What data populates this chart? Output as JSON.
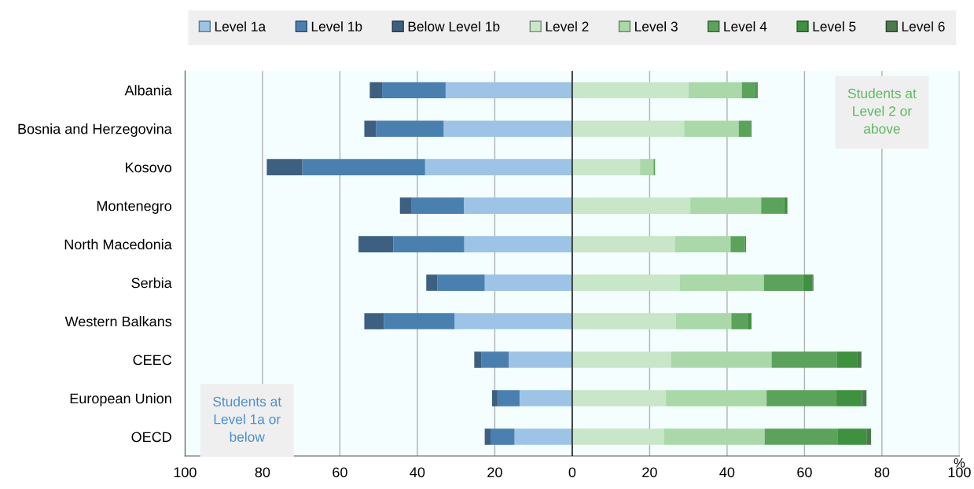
{
  "chart_data": {
    "type": "bar",
    "orientation": "horizontal",
    "stacked": true,
    "categories": [
      "Albania",
      "Bosnia and Herzegovina",
      "Kosovo",
      "Montenegro",
      "North Macedonia",
      "Serbia",
      "Western Balkans",
      "CEEC",
      "European Union",
      "OECD"
    ],
    "series": [
      {
        "name": "Level 1a",
        "color": "#9dc3e6",
        "values": [
          -32.7,
          -33.2,
          -38.0,
          -28.0,
          -27.9,
          -22.6,
          -30.4,
          -16.4,
          -13.6,
          -14.9
        ]
      },
      {
        "name": "Level 1b",
        "color": "#4a80b0",
        "values": [
          -16.4,
          -17.5,
          -31.7,
          -13.6,
          -18.3,
          -12.2,
          -18.2,
          -7.0,
          -5.7,
          -6.2
        ]
      },
      {
        "name": "Below Level 1b",
        "color": "#3d6080",
        "values": [
          -3.2,
          -3.0,
          -9.2,
          -2.9,
          -9.0,
          -2.9,
          -5.1,
          -1.9,
          -1.4,
          -1.5
        ]
      },
      {
        "name": "Level 2",
        "color": "#c8e6c8",
        "values": [
          30.0,
          28.9,
          17.5,
          30.5,
          26.5,
          27.8,
          26.8,
          25.5,
          24.2,
          23.7
        ]
      },
      {
        "name": "Level 3",
        "color": "#aad8a8",
        "values": [
          13.8,
          14.1,
          3.5,
          18.3,
          14.4,
          21.7,
          14.3,
          26.0,
          26.0,
          26.0
        ]
      },
      {
        "name": "Level 4",
        "color": "#5ba35b",
        "values": [
          3.5,
          3.1,
          0.4,
          5.9,
          3.7,
          10.1,
          4.4,
          16.8,
          17.9,
          18.8
        ]
      },
      {
        "name": "Level 5",
        "color": "#3e913e",
        "values": [
          0.4,
          0.2,
          0.0,
          0.8,
          0.3,
          2.4,
          0.8,
          5.4,
          6.7,
          7.5
        ]
      },
      {
        "name": "Level 6",
        "color": "#4a7a4a",
        "values": [
          0.2,
          0.0,
          0.0,
          0.1,
          0.0,
          0.3,
          0.0,
          1.0,
          1.2,
          1.2
        ]
      }
    ],
    "xlim": [
      -100,
      100
    ],
    "xticks": [
      {
        "value": -100,
        "label": "100"
      },
      {
        "value": -80,
        "label": "80"
      },
      {
        "value": -60,
        "label": "60"
      },
      {
        "value": -40,
        "label": "40"
      },
      {
        "value": -20,
        "label": "20"
      },
      0,
      20,
      40,
      60,
      80,
      100
    ],
    "xlabel": "%",
    "ref_lines": [
      {
        "axis": "x",
        "value": 0,
        "color": "#000000"
      }
    ],
    "annotations": [
      "Students at\nLevel 2 or\nabove",
      "Students at\nLevel 1a or\nbelow"
    ],
    "grid": "x",
    "legend": "top"
  }
}
